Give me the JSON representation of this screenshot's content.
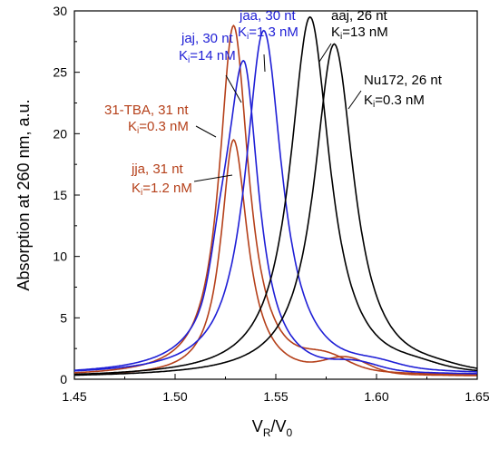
{
  "chart_data": {
    "type": "line",
    "xlabel": "V",
    "xlabel_sub_r": "R",
    "xlabel_mid": "/V",
    "xlabel_sub_0": "0",
    "ylabel": "Absorption at 260 nm, a.u.",
    "xlim": [
      1.45,
      1.65
    ],
    "ylim": [
      0,
      30
    ],
    "x_ticks": [
      "1.45",
      "1.50",
      "1.55",
      "1.60",
      "1.65"
    ],
    "y_ticks": [
      "0",
      "5",
      "10",
      "15",
      "20",
      "25",
      "30"
    ],
    "grid": false,
    "colors": {
      "jja": "#b5401a",
      "tba": "#b5401a",
      "jaj": "#1f1fd6",
      "jaa": "#1f1fd6",
      "aaj": "#000000",
      "nu172": "#000000"
    },
    "series": [
      {
        "key": "jja",
        "peak_x": 1.529,
        "peak_y": 19.3,
        "hw_left": 0.0075,
        "hw_right": 0.0085,
        "base": 0.2,
        "tail": 1.2,
        "tail_x": 1.585
      },
      {
        "key": "tba",
        "peak_x": 1.529,
        "peak_y": 28.6,
        "hw_left": 0.0085,
        "hw_right": 0.009,
        "base": 0.2,
        "tail": 1.0,
        "tail_x": 1.575
      },
      {
        "key": "jaj",
        "peak_x": 1.534,
        "peak_y": 25.6,
        "hw_left": 0.011,
        "hw_right": 0.009,
        "base": 0.3,
        "tail": 0.6,
        "tail_x": 1.59,
        "shoulder": true
      },
      {
        "key": "jaa",
        "peak_x": 1.544,
        "peak_y": 28.1,
        "hw_left": 0.011,
        "hw_right": 0.011,
        "base": 0.3,
        "tail": 0.4,
        "tail_x": 1.6
      },
      {
        "key": "aaj",
        "peak_x": 1.567,
        "peak_y": 29.4,
        "hw_left": 0.012,
        "hw_right": 0.012,
        "base": 0.1,
        "tail": 0.3,
        "tail_x": 1.62
      },
      {
        "key": "nu172",
        "peak_x": 1.579,
        "peak_y": 27.2,
        "hw_left": 0.012,
        "hw_right": 0.012,
        "base": 0.1,
        "tail": 0.2,
        "tail_x": 1.63
      }
    ],
    "annotations": [
      {
        "key": "jaa",
        "line1": "jaa, 30 nt",
        "line2_k": "K",
        "line2_sub": "i",
        "line2_val": "=1.3 nM"
      },
      {
        "key": "jaj",
        "line1": "jaj, 30 nt",
        "line2_k": "K",
        "line2_sub": "i",
        "line2_val": "=14 nM"
      },
      {
        "key": "aaj",
        "line1": "aaj, 26 nt",
        "line2_k": "K",
        "line2_sub": "i",
        "line2_val": "=13 nM"
      },
      {
        "key": "nu172",
        "line1": "Nu172, 26 nt",
        "line2_k": "K",
        "line2_sub": "i",
        "line2_val": "=0.3 nM"
      },
      {
        "key": "tba",
        "line1": "31-TBA, 31 nt",
        "line2_k": "K",
        "line2_sub": "i",
        "line2_val": "=0.3 nM"
      },
      {
        "key": "jja",
        "line1": "jja, 31 nt",
        "line2_k": "K",
        "line2_sub": "i",
        "line2_val": "=1.2 nM"
      }
    ]
  }
}
